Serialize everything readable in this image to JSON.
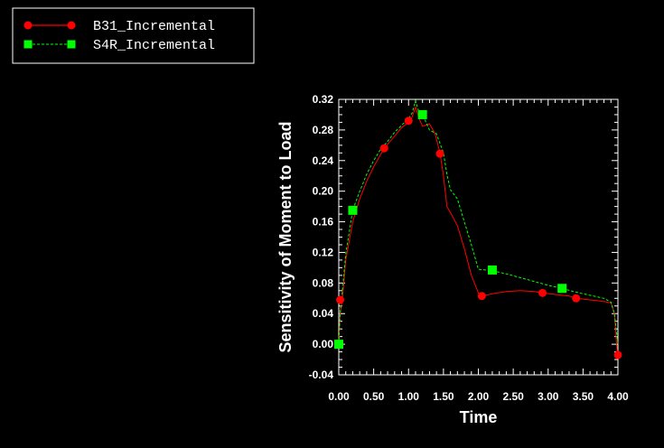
{
  "chart_data": {
    "type": "line",
    "title": "",
    "xlabel": "Time",
    "ylabel": "Sensitivity of Moment to Load",
    "xlim": [
      0.0,
      4.0
    ],
    "ylim": [
      -0.04,
      0.32
    ],
    "xticks": [
      "0.00",
      "0.50",
      "1.00",
      "1.50",
      "2.00",
      "2.50",
      "3.00",
      "3.50",
      "4.00"
    ],
    "yticks": [
      "-0.04",
      "0.00",
      "0.04",
      "0.08",
      "0.12",
      "0.16",
      "0.20",
      "0.24",
      "0.28",
      "0.32"
    ],
    "grid": false,
    "legend_position": "top-left",
    "series": [
      {
        "name": "B31_Incremental",
        "color": "#ff0000",
        "line_style": "solid",
        "marker": "circle",
        "x": [
          0.0,
          0.02,
          0.05,
          0.1,
          0.2,
          0.3,
          0.4,
          0.5,
          0.6,
          0.65,
          0.8,
          0.9,
          1.0,
          1.05,
          1.1,
          1.15,
          1.2,
          1.3,
          1.38,
          1.45,
          1.5,
          1.55,
          1.6,
          1.7,
          1.8,
          1.9,
          2.0,
          2.05,
          2.2,
          2.4,
          2.6,
          2.8,
          2.92,
          3.1,
          3.3,
          3.4,
          3.6,
          3.8,
          3.9,
          3.95,
          3.98,
          4.0
        ],
        "y": [
          0.0,
          0.04,
          0.058,
          0.11,
          0.16,
          0.19,
          0.213,
          0.232,
          0.248,
          0.256,
          0.272,
          0.283,
          0.29,
          0.297,
          0.31,
          0.295,
          0.285,
          0.288,
          0.275,
          0.25,
          0.22,
          0.18,
          0.172,
          0.155,
          0.125,
          0.09,
          0.067,
          0.063,
          0.066,
          0.069,
          0.07,
          0.069,
          0.067,
          0.065,
          0.063,
          0.06,
          0.058,
          0.056,
          0.054,
          0.04,
          0.0,
          -0.015
        ],
        "marker_x": [
          0.02,
          0.65,
          1.0,
          1.45,
          2.05,
          2.92,
          3.4,
          4.0
        ],
        "marker_y": [
          0.058,
          0.256,
          0.292,
          0.249,
          0.063,
          0.067,
          0.06,
          -0.014
        ]
      },
      {
        "name": "S4R_Incremental",
        "color": "#00ff00",
        "line_style": "dashed",
        "marker": "square",
        "x": [
          0.0,
          0.02,
          0.05,
          0.1,
          0.2,
          0.3,
          0.4,
          0.5,
          0.6,
          0.7,
          0.8,
          0.9,
          1.0,
          1.05,
          1.1,
          1.15,
          1.2,
          1.25,
          1.3,
          1.4,
          1.5,
          1.55,
          1.6,
          1.7,
          1.8,
          1.9,
          2.0,
          2.1,
          2.2,
          2.4,
          2.6,
          2.8,
          3.0,
          3.2,
          3.4,
          3.6,
          3.8,
          3.9,
          3.95,
          4.0
        ],
        "y": [
          0.0,
          0.04,
          0.068,
          0.118,
          0.175,
          0.2,
          0.222,
          0.24,
          0.255,
          0.265,
          0.277,
          0.286,
          0.295,
          0.302,
          0.318,
          0.303,
          0.3,
          0.29,
          0.28,
          0.275,
          0.25,
          0.222,
          0.202,
          0.19,
          0.16,
          0.13,
          0.098,
          0.097,
          0.096,
          0.092,
          0.087,
          0.082,
          0.077,
          0.073,
          0.068,
          0.064,
          0.06,
          0.055,
          0.04,
          0.0
        ],
        "marker_x": [
          0.0,
          0.2,
          1.2,
          2.2,
          3.2
        ],
        "marker_y": [
          0.0,
          0.175,
          0.3,
          0.097,
          0.073
        ]
      }
    ]
  }
}
